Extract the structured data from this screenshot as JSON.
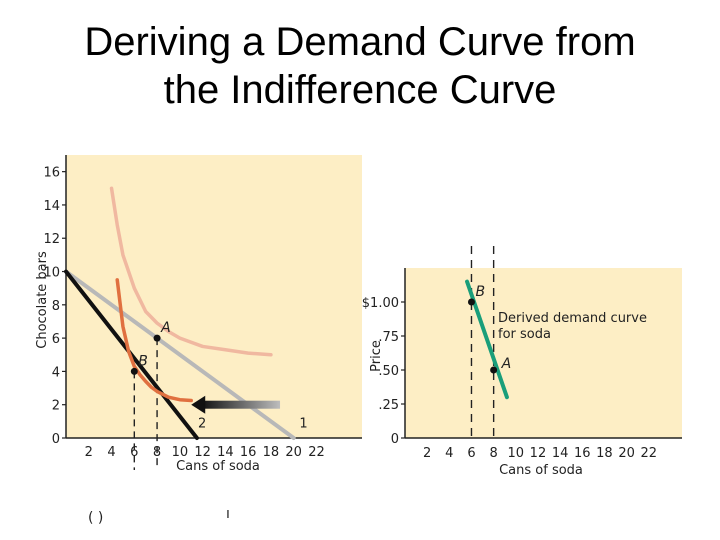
{
  "slide": {
    "title_line1": "Deriving a Demand Curve from",
    "title_line2": "the Indifference Curve"
  },
  "chart_data": [
    {
      "type": "line",
      "name": "indifference-map",
      "xlabel": "Cans of soda",
      "ylabel": "Chocolate bars",
      "x_ticks": [
        "2",
        "4",
        "6",
        "8",
        "10",
        "12",
        "14",
        "16",
        "18",
        "20",
        "22"
      ],
      "y_ticks": [
        "0",
        "2",
        "4",
        "6",
        "8",
        "10",
        "12",
        "14",
        "16"
      ],
      "xlim": [
        0,
        26
      ],
      "ylim": [
        0,
        17
      ],
      "series": [
        {
          "name": "Budget line 1",
          "color": "#b8b8b8",
          "points": [
            [
              0,
              10
            ],
            [
              20,
              0
            ]
          ]
        },
        {
          "name": "Budget line 2",
          "color": "#111111",
          "points": [
            [
              0,
              10
            ],
            [
              11.5,
              0
            ]
          ]
        },
        {
          "name": "Indifference curve (upper)",
          "color": "#f0b8a0",
          "points": [
            [
              4,
              15
            ],
            [
              4.5,
              12.8
            ],
            [
              5,
              11
            ],
            [
              6,
              9
            ],
            [
              7,
              7.6
            ],
            [
              8,
              6.9
            ],
            [
              9,
              6.4
            ],
            [
              10,
              6
            ],
            [
              12,
              5.5
            ],
            [
              14,
              5.3
            ],
            [
              16,
              5.1
            ],
            [
              18,
              5.0
            ]
          ]
        },
        {
          "name": "Indifference curve (lower)",
          "color": "#e07040",
          "points": [
            [
              4.5,
              9.5
            ],
            [
              5,
              6.7
            ],
            [
              5.5,
              5.2
            ],
            [
              6,
              4.3
            ],
            [
              6.5,
              3.8
            ],
            [
              7,
              3.4
            ],
            [
              7.5,
              3.05
            ],
            [
              8,
              2.8
            ],
            [
              9,
              2.45
            ],
            [
              10,
              2.3
            ],
            [
              11,
              2.25
            ]
          ]
        }
      ],
      "points": [
        {
          "label": "A",
          "x": 8,
          "y": 6
        },
        {
          "label": "B",
          "x": 6,
          "y": 4
        }
      ],
      "annotations": [
        {
          "text": "1",
          "x": 20.5,
          "y": 0.5
        },
        {
          "text": "2",
          "x": 11.6,
          "y": 0.5
        }
      ],
      "arrow": {
        "from": [
          18.8,
          2
        ],
        "to": [
          11,
          2
        ]
      },
      "dropdown_x": [
        6,
        8
      ]
    },
    {
      "type": "line",
      "name": "derived-demand",
      "xlabel": "Cans of soda",
      "ylabel": "Price",
      "x_ticks": [
        "2",
        "4",
        "6",
        "8",
        "10",
        "12",
        "14",
        "16",
        "18",
        "20",
        "22"
      ],
      "y_ticks": [
        "0",
        ".25",
        ".50",
        ".75",
        "$1.00"
      ],
      "y_values": [
        0,
        0.25,
        0.5,
        0.75,
        1.0
      ],
      "xlim": [
        0,
        25
      ],
      "ylim": [
        0,
        1.25
      ],
      "series": [
        {
          "name": "Derived demand curve for soda",
          "color": "#1a9e7a",
          "points": [
            [
              5.6,
              1.15
            ],
            [
              9.2,
              0.3
            ]
          ]
        }
      ],
      "points": [
        {
          "label": "B",
          "x": 6,
          "y": 1.0
        },
        {
          "label": "A",
          "x": 8,
          "y": 0.5
        }
      ],
      "curve_label_line1": "Derived demand curve",
      "curve_label_line2": "for soda",
      "dropdown_x": [
        6,
        8
      ]
    }
  ],
  "footer": {
    "left_marker": "( )",
    "mid_marker": "ı"
  }
}
